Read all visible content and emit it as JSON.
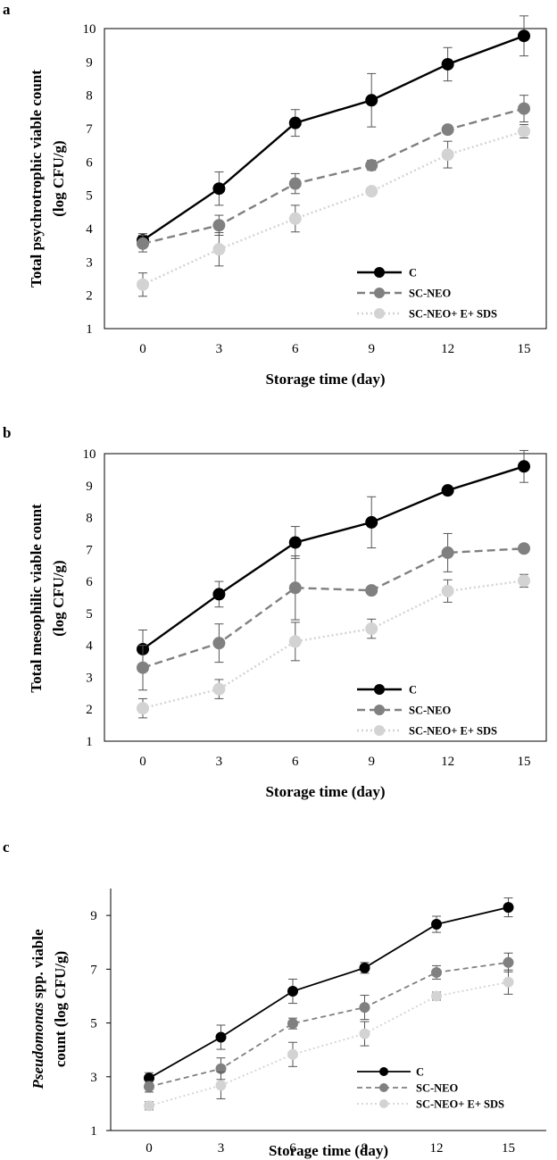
{
  "chart_data": [
    {
      "panel": "a",
      "type": "line",
      "xlabel": "Storage time (day)",
      "ylabel_lines": [
        "Total psychrotrophic viable count",
        "(log CFU/g)"
      ],
      "x": [
        "0",
        "3",
        "6",
        "9",
        "12",
        "15"
      ],
      "ylim": [
        1,
        10
      ],
      "yticks": [
        "1",
        "2",
        "3",
        "4",
        "5",
        "6",
        "7",
        "8",
        "9",
        "10"
      ],
      "legend_position": "bottom-right",
      "grid": false,
      "series": [
        {
          "name": "C",
          "color": "#000000",
          "values": [
            3.65,
            5.2,
            7.17,
            7.85,
            8.93,
            9.78
          ],
          "errors": [
            0.2,
            0.5,
            0.4,
            0.8,
            0.5,
            0.6
          ]
        },
        {
          "name": "SC-NEO",
          "color": "#808080",
          "values": [
            3.55,
            4.1,
            5.35,
            5.9,
            6.97,
            7.6
          ],
          "errors": [
            0.25,
            0.3,
            0.3,
            0.15,
            0.1,
            0.4
          ]
        },
        {
          "name": "SC-NEO+ E+ SDS",
          "color": "#d3d3d3",
          "values": [
            2.32,
            3.38,
            4.3,
            5.12,
            6.22,
            6.92
          ],
          "errors": [
            0.35,
            0.5,
            0.4,
            0.1,
            0.4,
            0.2
          ]
        }
      ]
    },
    {
      "panel": "b",
      "type": "line",
      "xlabel": "Storage time (day)",
      "ylabel_lines": [
        "Total mesophilic viable count",
        "(log CFU/g)"
      ],
      "x": [
        "0",
        "3",
        "6",
        "9",
        "12",
        "15"
      ],
      "ylim": [
        1,
        10
      ],
      "yticks": [
        "1",
        "2",
        "3",
        "4",
        "5",
        "6",
        "7",
        "8",
        "9",
        "10"
      ],
      "legend_position": "bottom-right",
      "grid": false,
      "series": [
        {
          "name": "C",
          "color": "#000000",
          "values": [
            3.88,
            5.6,
            7.22,
            7.85,
            8.85,
            9.6
          ],
          "errors": [
            0.6,
            0.4,
            0.5,
            0.8,
            0.1,
            0.5
          ]
        },
        {
          "name": "SC-NEO",
          "color": "#808080",
          "values": [
            3.3,
            4.07,
            5.8,
            5.72,
            6.9,
            7.03
          ],
          "errors": [
            0.7,
            0.6,
            1.0,
            0.1,
            0.6,
            0.1
          ]
        },
        {
          "name": "SC-NEO+ E+ SDS",
          "color": "#d3d3d3",
          "values": [
            2.03,
            2.63,
            4.12,
            4.52,
            5.7,
            6.02
          ],
          "errors": [
            0.3,
            0.3,
            0.6,
            0.3,
            0.35,
            0.2
          ]
        }
      ]
    },
    {
      "panel": "c",
      "type": "line",
      "xlabel": "Storage time (day)",
      "ylabel_lines": [
        "Pseudomonas spp. viable",
        "count (log CFU/g)"
      ],
      "ylabel_italic_word": "Pseudomonas",
      "x": [
        "0",
        "3",
        "6",
        "9",
        "12",
        "15"
      ],
      "ylim": [
        1,
        10
      ],
      "yticks": [
        "1",
        "3",
        "5",
        "7",
        "9"
      ],
      "legend_position": "bottom-right",
      "grid": false,
      "series": [
        {
          "name": "C",
          "color": "#000000",
          "values": [
            2.95,
            4.47,
            6.18,
            7.05,
            8.67,
            9.3
          ],
          "errors": [
            0.2,
            0.45,
            0.45,
            0.2,
            0.3,
            0.35
          ]
        },
        {
          "name": "SC-NEO",
          "color": "#808080",
          "values": [
            2.63,
            3.3,
            4.98,
            5.58,
            6.88,
            7.25
          ],
          "errors": [
            0.2,
            0.4,
            0.2,
            0.45,
            0.25,
            0.35
          ]
        },
        {
          "name": "SC-NEO+ E+ SDS",
          "color": "#d3d3d3",
          "values": [
            1.92,
            2.68,
            3.83,
            4.6,
            6.0,
            6.52
          ],
          "errors": [
            0.15,
            0.5,
            0.45,
            0.45,
            0.15,
            0.45
          ]
        }
      ]
    }
  ]
}
